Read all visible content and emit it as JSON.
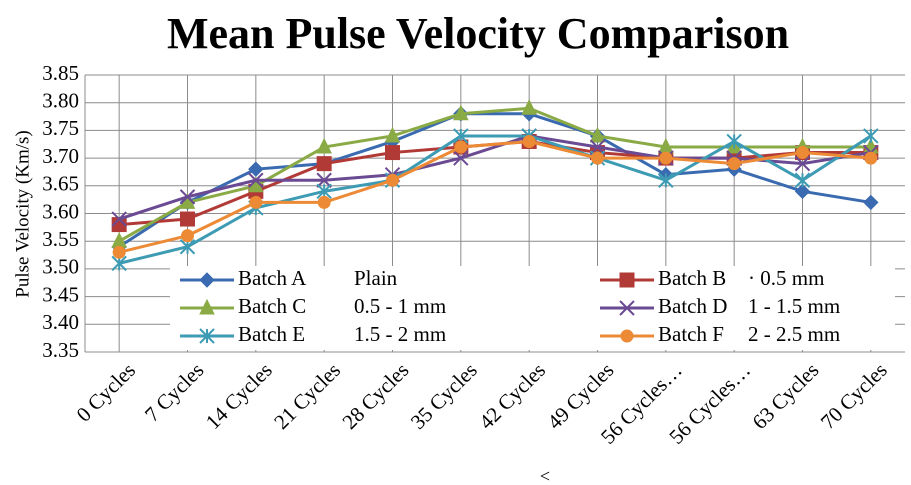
{
  "chart_data": {
    "type": "line",
    "title": "Mean Pulse Velocity Comparison",
    "y_label": "Pulse Velocity (Km/s)",
    "x_label": "<",
    "categories": [
      "0 Cycles",
      "7 Cycles",
      "14 Cycles",
      "21 Cycles",
      "28 Cycles",
      "35 Cycles",
      "42 Cycles",
      "49 Cycles",
      "56 Cycles…",
      "56 Cycles…",
      "63 Cycles",
      "70 Cycles"
    ],
    "series": [
      {
        "name": "Batch A",
        "description": "Plain",
        "color": "#3a6bb0",
        "marker": "diamond",
        "values": [
          3.54,
          3.62,
          3.68,
          3.69,
          3.73,
          3.78,
          3.78,
          3.74,
          3.67,
          3.68,
          3.64,
          3.62
        ]
      },
      {
        "name": "Batch B",
        "description": "· 0.5 mm",
        "color": "#b23a36",
        "marker": "square",
        "values": [
          3.58,
          3.59,
          3.64,
          3.69,
          3.71,
          3.72,
          3.73,
          3.71,
          3.7,
          3.7,
          3.71,
          3.71
        ]
      },
      {
        "name": "Batch C",
        "description": "0.5 - 1 mm",
        "color": "#8aaa45",
        "marker": "triangle",
        "values": [
          3.55,
          3.62,
          3.65,
          3.72,
          3.74,
          3.78,
          3.79,
          3.74,
          3.72,
          3.72,
          3.72,
          3.72
        ]
      },
      {
        "name": "Batch D",
        "description": "1 - 1.5 mm",
        "color": "#6a4a92",
        "marker": "x",
        "values": [
          3.59,
          3.63,
          3.66,
          3.66,
          3.67,
          3.7,
          3.74,
          3.72,
          3.7,
          3.7,
          3.69,
          3.71
        ]
      },
      {
        "name": "Batch E",
        "description": "1.5 - 2 mm",
        "color": "#3d9bb3",
        "marker": "star",
        "values": [
          3.51,
          3.54,
          3.61,
          3.64,
          3.66,
          3.74,
          3.74,
          3.7,
          3.66,
          3.73,
          3.66,
          3.74
        ]
      },
      {
        "name": "Batch F",
        "description": "2 - 2.5 mm",
        "color": "#ec8a35",
        "marker": "circle",
        "values": [
          3.53,
          3.56,
          3.62,
          3.62,
          3.66,
          3.72,
          3.73,
          3.7,
          3.7,
          3.69,
          3.71,
          3.7
        ]
      }
    ],
    "ylim": [
      3.35,
      3.85
    ],
    "yticks": [
      3.35,
      {
        "value": 3.4,
        "label": "3.40"
      },
      3.45,
      {
        "value": 3.5,
        "label": "3.50"
      },
      3.55,
      {
        "value": 3.6,
        "label": "3.60"
      },
      3.65,
      {
        "value": 3.7,
        "label": "3.70"
      },
      3.75,
      {
        "value": 3.8,
        "label": "3.80"
      },
      3.85
    ],
    "grid": true
  }
}
